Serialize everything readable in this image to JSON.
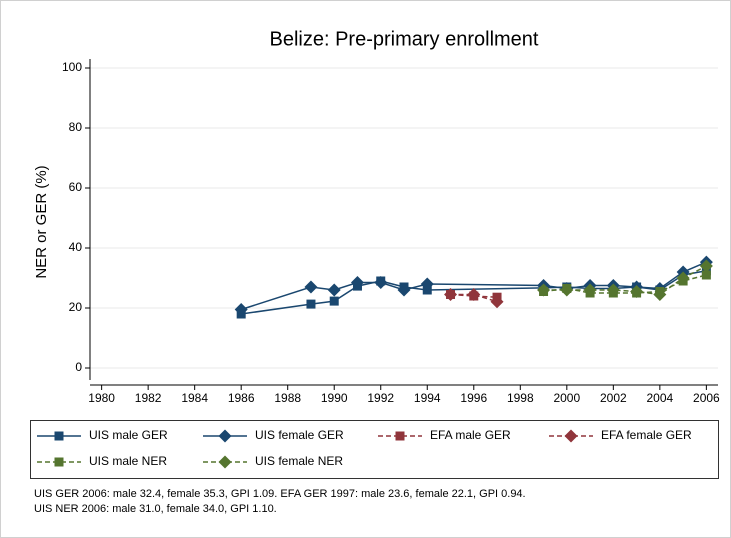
{
  "chart_data": {
    "type": "line",
    "title": "Belize: Pre-primary enrollment",
    "y_label": "NER or GER (%)",
    "xlim": [
      1979.5,
      2006.5
    ],
    "ylim": [
      -4,
      103
    ],
    "xticks": [
      1980,
      1982,
      1984,
      1986,
      1988,
      1990,
      1992,
      1994,
      1996,
      1998,
      2000,
      2002,
      2004,
      2006
    ],
    "yticks": [
      0,
      20,
      40,
      60,
      80,
      100
    ],
    "grid": true,
    "legend": "bottom",
    "series": [
      {
        "name": "UIS male GER",
        "color": "#1a476f",
        "marker": "square",
        "style": "solid",
        "x": [
          1986,
          1989,
          1990,
          1991,
          1992,
          1993,
          1994,
          1999,
          2000,
          2001,
          2002,
          2003,
          2004,
          2005,
          2006
        ],
        "values": [
          18,
          21.3,
          22.3,
          27.3,
          29,
          27,
          26,
          26.7,
          27,
          26.5,
          26.5,
          27,
          26,
          31,
          32.4
        ]
      },
      {
        "name": "UIS female GER",
        "color": "#1a476f",
        "marker": "diamond",
        "style": "solid",
        "x": [
          1986,
          1989,
          1990,
          1991,
          1992,
          1993,
          1994,
          1999,
          2000,
          2001,
          2002,
          2003,
          2004,
          2005,
          2006
        ],
        "values": [
          19.5,
          27,
          26,
          28.5,
          28.5,
          26,
          28,
          27.5,
          26.5,
          27.5,
          27.5,
          27,
          26.5,
          32,
          35.3
        ]
      },
      {
        "name": "EFA male GER",
        "color": "#90353b",
        "marker": "square",
        "style": "dashed",
        "x": [
          1995,
          1996,
          1997
        ],
        "values": [
          24.5,
          24,
          23.6
        ]
      },
      {
        "name": "EFA female GER",
        "color": "#90353b",
        "marker": "diamond",
        "style": "dashed",
        "x": [
          1995,
          1996,
          1997
        ],
        "values": [
          24.5,
          24.5,
          22.1
        ]
      },
      {
        "name": "UIS male NER",
        "color": "#55752f",
        "marker": "square",
        "style": "dashed",
        "x": [
          1999,
          2000,
          2001,
          2002,
          2003,
          2004,
          2005,
          2006
        ],
        "values": [
          25.5,
          26.5,
          25,
          25,
          25,
          25.5,
          29,
          31
        ]
      },
      {
        "name": "UIS female NER",
        "color": "#55752f",
        "marker": "diamond",
        "style": "dashed",
        "x": [
          1999,
          2000,
          2001,
          2002,
          2003,
          2004,
          2005,
          2006
        ],
        "values": [
          26,
          26,
          26,
          26,
          25.5,
          24.5,
          30,
          34
        ]
      }
    ],
    "notes": [
      "UIS GER 2006: male 32.4, female 35.3, GPI 1.09. EFA GER 1997: male 23.6, female 22.1, GPI 0.94.",
      "UIS NER 2006: male 31.0, female 34.0, GPI 1.10."
    ]
  }
}
